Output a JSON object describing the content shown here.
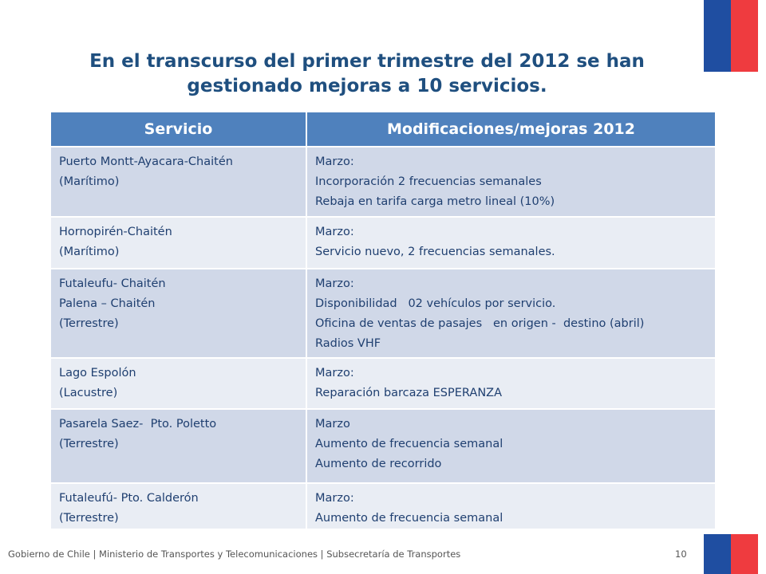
{
  "slide": {
    "title_lines": [
      "En el transcurso del primer trimestre del 2012 se han",
      "gestionado mejoras a 10 servicios."
    ],
    "table": {
      "headers": [
        "Servicio",
        "Modificaciones/mejoras 2012"
      ],
      "rows": [
        {
          "servicio": [
            "Puerto Montt-Ayacara-Chaitén",
            "(Marítimo)"
          ],
          "mejoras": [
            "Marzo:",
            "Incorporación 2 frecuencias semanales",
            "Rebaja en tarifa carga metro lineal (10%)"
          ]
        },
        {
          "servicio": [
            "Hornopirén-Chaitén",
            "(Marítimo)"
          ],
          "mejoras": [
            "Marzo:",
            "Servicio nuevo, 2 frecuencias semanales."
          ]
        },
        {
          "servicio": [
            "Futaleufu- Chaitén",
            "Palena – Chaitén",
            "(Terrestre)"
          ],
          "mejoras": [
            "Marzo:",
            "Disponibilidad   02 vehículos por servicio.",
            "Oficina de ventas de pasajes   en origen -  destino (abril)",
            "Radios VHF"
          ]
        },
        {
          "servicio": [
            "Lago Espolón",
            "(Lacustre)"
          ],
          "mejoras": [
            "Marzo:",
            "Reparación barcaza ESPERANZA"
          ]
        },
        {
          "servicio": [
            "Pasarela Saez-  Pto. Poletto",
            "(Terrestre)"
          ],
          "mejoras": [
            "Marzo",
            "Aumento de frecuencia semanal",
            "Aumento de recorrido"
          ]
        },
        {
          "servicio": [
            "Futaleufú- Pto. Calderón",
            "(Terrestre)"
          ],
          "mejoras": [
            "Marzo:",
            "Aumento de frecuencia semanal"
          ]
        }
      ]
    },
    "footer": "Gobierno de Chile | Ministerio de Transportes y Telecomunicaciones | Subsecretaría de Transportes",
    "page_number": "10",
    "colors": {
      "flag_blue": "#1f4ea1",
      "flag_red": "#ef3b3f",
      "header_blue": "#4f81bd",
      "row_dark": "#d0d8e8",
      "row_light": "#e9edf4",
      "title_text": "#1f4f7f"
    }
  }
}
